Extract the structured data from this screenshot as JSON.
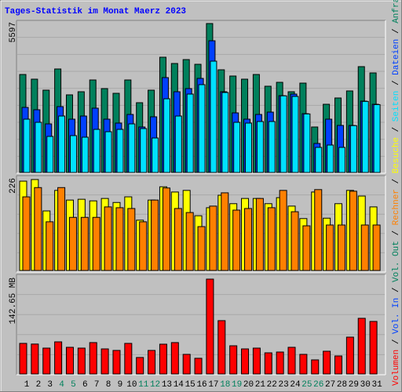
{
  "title": "Tages-Statistik im Monat Maerz 2023",
  "legend_separator": " / ",
  "chart_data": [
    {
      "type": "bar",
      "ylim": [
        0,
        5597
      ],
      "yticks": [
        5597
      ],
      "series": [
        {
          "name": "Anfragen",
          "color": "#00805C",
          "values": [
            3682,
            3506,
            3093,
            3889,
            2917,
            3034,
            3476,
            3152,
            2975,
            3476,
            2622,
            3093,
            4331,
            4095,
            4242,
            4065,
            5597,
            3859,
            3624,
            3506,
            3682,
            3241,
            3388,
            3034,
            3358,
            1709,
            2563,
            2799,
            3064,
            3977,
            3741
          ]
        },
        {
          "name": "Dateien",
          "color": "#0040FF",
          "values": [
            2445,
            2357,
            1826,
            2475,
            2003,
            2121,
            2416,
            2003,
            1856,
            2180,
            1709,
            2092,
            3565,
            3034,
            3152,
            3535,
            4949,
            3034,
            2239,
            2003,
            2180,
            2268,
            2887,
            2946,
            2210,
            1090,
            2003,
            1768,
            1768,
            2681,
            2563
          ]
        },
        {
          "name": "Seiten",
          "color": "#00E0FF",
          "values": [
            2003,
            1885,
            1355,
            2121,
            1385,
            1326,
            1620,
            1532,
            1620,
            1826,
            1650,
            1296,
            2769,
            2121,
            2946,
            3300,
            4183,
            3005,
            1885,
            1856,
            1915,
            1915,
            2880,
            2858,
            2200,
            943,
            1031,
            943,
            1760,
            2670,
            2550
          ]
        }
      ]
    },
    {
      "type": "bar",
      "ylim": [
        0,
        226
      ],
      "yticks": [
        226
      ],
      "series": [
        {
          "name": "Besuche",
          "color": "#FFFF00",
          "values": [
            222,
            226,
            148,
            199,
            175,
            177,
            173,
            179,
            169,
            183,
            125,
            175,
            208,
            195,
            199,
            136,
            156,
            187,
            166,
            179,
            179,
            166,
            181,
            160,
            129,
            195,
            130,
            166,
            199,
            185,
            158
          ]
        },
        {
          "name": "Rechner",
          "color": "#FF8000",
          "values": [
            183,
            206,
            121,
            206,
            132,
            132,
            132,
            158,
            156,
            154,
            121,
            175,
            205,
            154,
            144,
            109,
            160,
            193,
            150,
            154,
            179,
            156,
            199,
            146,
            111,
            201,
            113,
            113,
            197,
            113,
            113
          ]
        }
      ]
    },
    {
      "type": "bar",
      "ylim": [
        0,
        142.65
      ],
      "yticks": [
        {
          "value": 142.65,
          "label": "142.65 MB"
        }
      ],
      "categories": [
        "1",
        "2",
        "3",
        "4",
        "5",
        "6",
        "7",
        "8",
        "9",
        "10",
        "11",
        "12",
        "13",
        "14",
        "15",
        "16",
        "17",
        "18",
        "19",
        "20",
        "21",
        "22",
        "23",
        "24",
        "25",
        "26",
        "27",
        "28",
        "29",
        "30",
        "31"
      ],
      "category_colors": [
        "#000000",
        "#000000",
        "#000000",
        "#00805C",
        "#00805C",
        "#000000",
        "#000000",
        "#000000",
        "#000000",
        "#000000",
        "#00805C",
        "#00805C",
        "#000000",
        "#000000",
        "#000000",
        "#000000",
        "#000000",
        "#00805C",
        "#00805C",
        "#000000",
        "#000000",
        "#000000",
        "#000000",
        "#000000",
        "#00805C",
        "#00805C",
        "#000000",
        "#000000",
        "#000000",
        "#000000",
        "#000000"
      ],
      "series": [
        {
          "name": "Volumen",
          "color": "#FF0000",
          "values": [
            46.0,
            45.0,
            38.9,
            48.3,
            40.1,
            38.9,
            47.2,
            37.7,
            35.4,
            46.0,
            24.8,
            35.4,
            44.8,
            47.2,
            29.5,
            23.6,
            142.65,
            80.2,
            42.4,
            37.7,
            38.9,
            31.8,
            33.0,
            40.1,
            29.5,
            21.2,
            34.2,
            27.1,
            55.4,
            83.7,
            79.0
          ]
        }
      ],
      "legend_only": [
        {
          "name": "Vol. In",
          "color": "#0040FF"
        },
        {
          "name": "Vol. Out",
          "color": "#00805C"
        }
      ]
    }
  ]
}
